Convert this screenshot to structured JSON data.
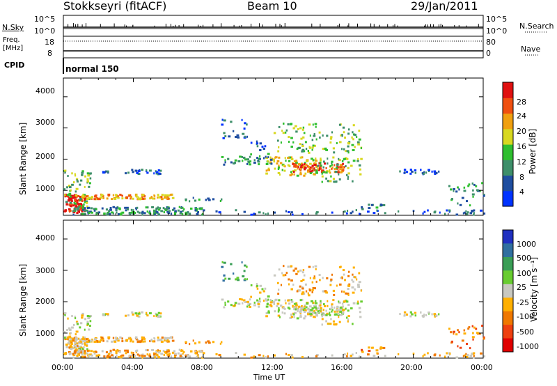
{
  "header": {
    "station": "Stokkseyri (fitACF)",
    "beam": "Beam 10",
    "date": "29/Jan/2011"
  },
  "summary_panels": {
    "nsky_label": "N.Sky",
    "nsky_ticks": [
      "10^5",
      "10^0"
    ],
    "nsearch_label": "N.Search",
    "nsearch_ticks": [
      "10^5",
      "10^0"
    ],
    "freq_label_line1": "Freq.",
    "freq_label_line2": "[MHz]",
    "freq_ticks": [
      "18",
      "8"
    ],
    "nave_label": "Nave",
    "nave_ticks": [
      "80",
      "0"
    ],
    "cpid_label": "CPID",
    "cpid_value": "normal 150"
  },
  "colors": {
    "power": [
      "#0033ff",
      "#1f4ea0",
      "#3e8f6a",
      "#2fbf2f",
      "#d8d820",
      "#f0a010",
      "#f05010",
      "#e01010"
    ],
    "velocity": [
      "#2030c0",
      "#306fa0",
      "#3a9e56",
      "#68cc30",
      "#c8c8c0",
      "#ffb000",
      "#f07800",
      "#ee4010",
      "#e00000"
    ],
    "frame": "#000000"
  },
  "chart_data": [
    {
      "type": "heatmap",
      "name": "power",
      "ylabel": "Slant Range [km]",
      "ylim": [
        200,
        4600
      ],
      "y_ticks": [
        1000,
        2000,
        3000,
        4000
      ],
      "x_range_hours": [
        0,
        24
      ],
      "colorbar_label": "Power [dB]",
      "colorbar_ticks": [
        "4",
        "8",
        "12",
        "16",
        "20",
        "24",
        "28"
      ],
      "colorbar_range": [
        0,
        32
      ]
    },
    {
      "type": "heatmap",
      "name": "velocity",
      "ylabel": "Slant Range [km]",
      "ylim": [
        200,
        4600
      ],
      "y_ticks": [
        1000,
        2000,
        3000,
        4000
      ],
      "x_range_hours": [
        0,
        24
      ],
      "colorbar_label": "Velocity [m s⁻¹]",
      "colorbar_ticks": [
        "1000",
        "500",
        "100",
        "25",
        "-25",
        "-100",
        "-500",
        "-1000"
      ]
    }
  ],
  "x_axis": {
    "ticks": [
      "00:00",
      "04:00",
      "08:00",
      "12:00",
      "16:00",
      "20:00",
      "00:00"
    ],
    "label": "Time UT"
  }
}
